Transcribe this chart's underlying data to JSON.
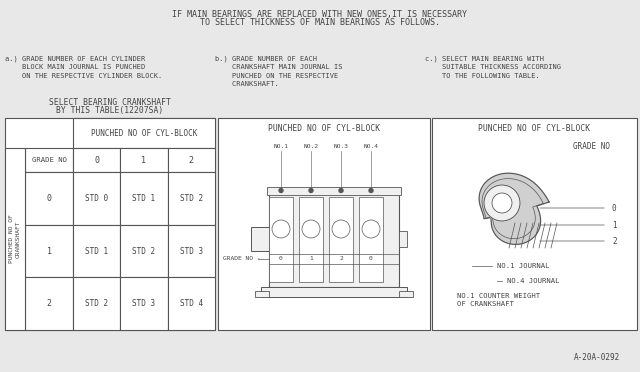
{
  "bg_color": "#e8e8e8",
  "line_color": "#555555",
  "text_color": "#444444",
  "title_text1": "IF MAIN BEARINGS ARE REPLACED WITH NEW ONES,IT IS NECESSARY",
  "title_text2": "TO SELECT THICKNESS OF MAIN BEARINGS AS FOLLOWS.",
  "label_a": "a.) GRADE NUMBER OF EACH CYLINDER\n    BLOCK MAIN JOURNAL IS PUNCHED\n    ON THE RESPECTIVE CYLINDER BLOCK.",
  "label_b": "b.) GRADE NUMBER OF EACH\n    CRANKSHAFT MAIN JOURNAL IS\n    PUNCHED ON THE RESPECTIVE\n    CRANKSHAFT.",
  "label_c": "c.) SELECT MAIN BEARING WITH\n    SUITABLE THICKNESS ACCORDING\n    TO THE FOLLOWING TABLE.",
  "table_title1": "SELECT BEARING CRANKSHAFT",
  "table_title2": "BY THIS TABLE(12207SA)",
  "col_header": "PUNCHED NO OF CYL-BLOCK",
  "grade_no": "GRADE NO",
  "col_vals": [
    "0",
    "1",
    "2"
  ],
  "row_vals": [
    "0",
    "1",
    "2"
  ],
  "table_data": [
    [
      "STD 0",
      "STD 1",
      "STD 2"
    ],
    [
      "STD 1",
      "STD 2",
      "STD 3"
    ],
    [
      "STD 2",
      "STD 3",
      "STD 4"
    ]
  ],
  "box1_title": "PUNCHED NO OF CYL-BLOCK",
  "box1_labels": [
    "NO.1",
    "NO.2",
    "NO.3",
    "NO.4"
  ],
  "box1_grade": "GRADE NO",
  "box2_title": "PUNCHED NO OF CYL-BLOCK",
  "box2_grade": "GRADE NO",
  "box2_vals": [
    "0",
    "1",
    "2"
  ],
  "box2_label0": "NO.1 JOURNAL",
  "box2_label1": "NO.4 JOURNAL",
  "box2_label2": "NO.1 COUNTER WEIGHT\nOF CRANKSHAFT",
  "footnote": "A-20A-0292"
}
